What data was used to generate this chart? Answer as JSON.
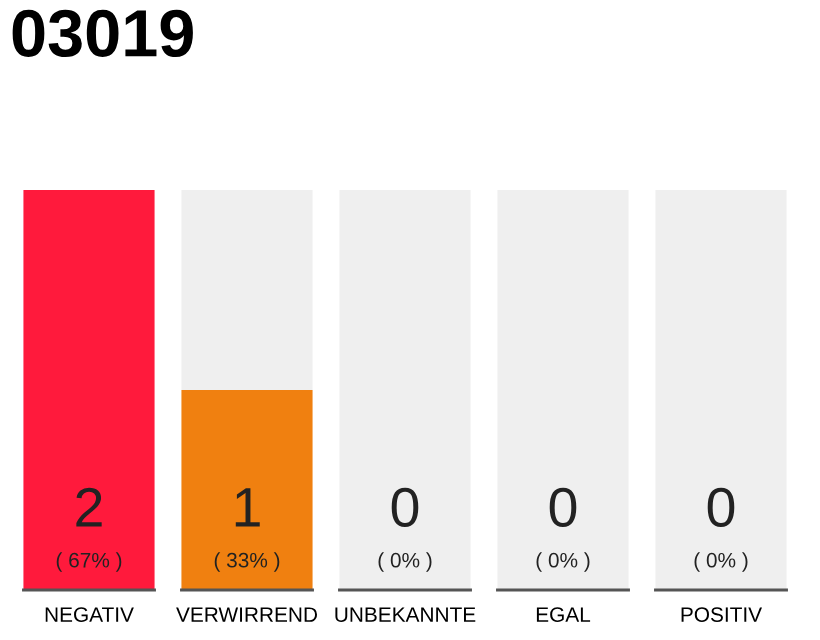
{
  "chart_data": {
    "type": "bar",
    "title": "03019",
    "categories": [
      "NEGATIV",
      "VERWIRREND",
      "UNBEKANNTE",
      "EGAL",
      "POSITIV"
    ],
    "stacked": true,
    "series": [
      {
        "colors": [
          "#ff1a3c",
          "#f08010",
          "#f08010",
          "#f08010",
          "#f08010"
        ],
        "values": [
          2,
          1,
          0,
          0,
          0
        ],
        "value_labels": [
          "2",
          "1",
          null,
          null,
          null
        ]
      },
      {
        "color": "#efefef",
        "values": [
          0,
          1,
          2,
          2,
          2
        ],
        "value_labels": [
          null,
          null,
          null,
          null,
          null
        ]
      }
    ],
    "ylim": [
      0,
      2
    ],
    "tick_labels": "x",
    "annotations": [
      {
        "text": "0",
        "x": "UNBEKANNTE",
        "y": 0
      },
      {
        "text": "0",
        "x": "EGAL",
        "y": 0
      },
      {
        "text": "0",
        "x": "POSITIV",
        "y": 0
      },
      "( 67% )",
      "( 33% )",
      "( 0% )",
      "( 0% )",
      "( 0% )"
    ]
  }
}
